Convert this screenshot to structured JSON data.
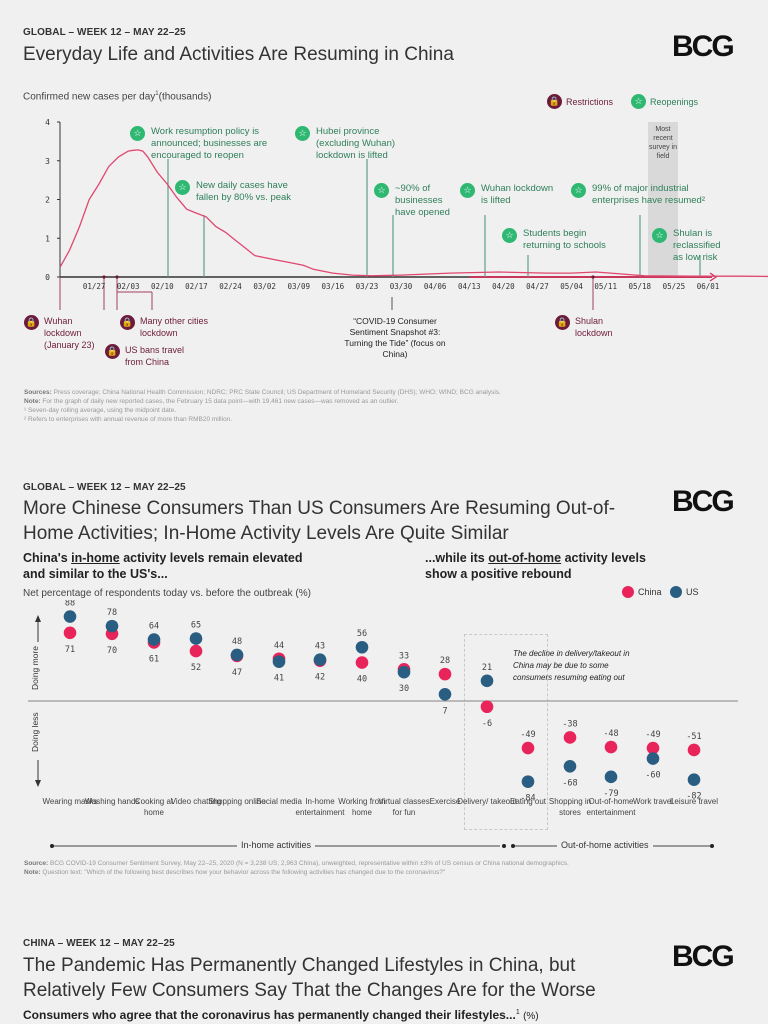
{
  "slide1": {
    "kicker": "GLOBAL – WEEK 12 – MAY 22–25",
    "title": "Everyday Life and Activities Are Resuming in China",
    "logo": "BCG",
    "subtitle": "Confirmed new cases per day",
    "subtitle_sup": "1",
    "subtitle_unit": "(thousands)",
    "legend": {
      "restrictions": "Restrictions",
      "reopenings": "Reopenings",
      "restriction_icon": "lock-icon",
      "reopening_icon": "star-icon"
    },
    "survey_box": "Most recent survey in field",
    "reopenings": [
      {
        "text": "Work resumption policy is announced; businesses are encouraged to reopen"
      },
      {
        "text": "New daily cases have fallen by 80% vs. peak"
      },
      {
        "text": "Hubei province (excluding Wuhan) lockdown is lifted"
      },
      {
        "text": "~90% of businesses have opened"
      },
      {
        "text": "Wuhan lockdown is lifted"
      },
      {
        "text": "Students begin returning to schools"
      },
      {
        "text": "99% of major industrial enterprises have resumed²"
      },
      {
        "text": "Shulan is reclassified as low risk"
      }
    ],
    "restrictions": [
      {
        "text": "Wuhan lockdown (January 23)"
      },
      {
        "text": "Many other cities lockdown"
      },
      {
        "text": "US bans travel from China"
      },
      {
        "text": "Shulan lockdown"
      }
    ],
    "snapshot_label": "“COVID-19 Consumer Sentiment Snapshot #3: Turning the Tide” (focus on China)",
    "notes": {
      "sources_label": "Sources:",
      "sources": "Press coverage; China National Health Commission; NDRC; PRC State Council; US Department of Homeland Security (DHS); WHO; WIND; BCG analysis.",
      "note_label": "Note:",
      "note": "For the graph of daily new reported cases, the February 15 data point—with 19,461 new cases—was removed as an outlier.",
      "fn1": "¹ Seven-day rolling average, using the midpoint date.",
      "fn2": "² Refers to enterprises with annual revenue of more than RMB20 million."
    }
  },
  "slide2": {
    "kicker": "GLOBAL – WEEK 12 – MAY 22–25",
    "title_line1": "More Chinese Consumers Than US Consumers Are Resuming Out-of-",
    "title_line2": "Home Activities; In-Home Activity Levels Are Quite Similar",
    "logo": "BCG",
    "left_sub_a": "China's ",
    "left_sub_u": "in-home",
    "left_sub_b": " activity levels remain elevated",
    "left_sub_c": "and similar to the US's...",
    "right_sub_a": "...while its ",
    "right_sub_u": "out-of-home",
    "right_sub_b": " activity levels",
    "right_sub_c": "show a positive rebound",
    "measure": "Net percentage of respondents today vs. before the outbreak (%)",
    "legend_china": "China",
    "legend_us": "US",
    "doing_more": "Doing more",
    "doing_less": "Doing less",
    "annotation": "The decline in delivery/takeout in China may be due to some consumers resuming eating out",
    "group_in": "In-home activities",
    "group_out": "Out-of-home activities",
    "source_label": "Source:",
    "source": "BCG COVID-19 Consumer Sentiment Survey, May 22–25, 2020 (N = 3,238 US; 2,963 China), unweighted, representative within ±3% of US census or China national demographics.",
    "note_label": "Note:",
    "note": "Question text: \"Which of the following best describes how your behavior across the following activities has changed due to the coronavirus?\""
  },
  "slide3": {
    "kicker": "CHINA – WEEK 12 – MAY 22–25",
    "title_line1": "The Pandemic Has Permanently Changed Lifestyles in China, but",
    "title_line2": "Relatively Few Consumers Say That the Changes Are for the Worse",
    "logo": "BCG",
    "subtitle": "Consumers who agree that the coronavirus has permanently changed their lifestyles...",
    "subtitle_sup": "1",
    "subtitle_unit": "(%)"
  },
  "colors": {
    "china": "#e8245a",
    "us": "#2a5d82",
    "green": "#2eb872",
    "maroon": "#6d1b3a",
    "line": "#e0476f"
  },
  "chart_data": [
    {
      "type": "line",
      "title": "Confirmed new cases per day (thousands)",
      "xlabel": "",
      "ylabel": "thousands",
      "ylim": [
        0,
        4
      ],
      "yticks": [
        "0",
        "1",
        "2",
        "3",
        "4"
      ],
      "xticks": [
        "01/27",
        "02/03",
        "02/10",
        "02/17",
        "02/24",
        "03/02",
        "03/09",
        "03/16",
        "03/23",
        "03/30",
        "04/06",
        "04/13",
        "04/20",
        "04/27",
        "05/04",
        "05/11",
        "05/18",
        "05/25",
        "06/01"
      ],
      "x_start": "01/20",
      "grid": false,
      "series": [
        {
          "name": "Seven-day rolling average",
          "x_days": [
            0,
            2,
            4,
            6,
            8,
            10,
            12,
            14,
            15,
            16,
            17,
            18,
            20,
            22,
            24,
            26,
            28,
            30,
            32,
            34,
            36,
            38,
            40,
            42,
            44,
            46,
            48,
            50,
            52,
            56,
            60,
            64,
            70,
            80,
            90,
            100,
            105,
            110,
            115,
            120,
            130,
            140,
            150,
            160,
            170,
            180,
            190
          ],
          "values": [
            0.25,
            0.7,
            1.3,
            2.0,
            2.4,
            2.85,
            3.1,
            3.25,
            3.27,
            3.28,
            3.25,
            3.1,
            2.7,
            2.4,
            2.05,
            1.75,
            1.65,
            1.55,
            1.3,
            1.15,
            0.95,
            0.75,
            0.55,
            0.5,
            0.45,
            0.4,
            0.35,
            0.3,
            0.2,
            0.1,
            0.05,
            0.03,
            0.05,
            0.1,
            0.13,
            0.1,
            0.1,
            0.13,
            0.08,
            0.03,
            0.02,
            0.02,
            0.01,
            0.01,
            0.01,
            0.01,
            0.01
          ]
        }
      ],
      "events": [
        {
          "date": "01/23",
          "type": "restriction",
          "label": "Wuhan lockdown (January 23)"
        },
        {
          "date": "02/02",
          "type": "restriction",
          "label": "US bans travel from China"
        },
        {
          "date": "02/04",
          "type": "restriction",
          "label": "Many other cities lockdown"
        },
        {
          "date": "02/17",
          "type": "reopening",
          "label": "Work resumption policy is announced; businesses are encouraged to reopen"
        },
        {
          "date": "02/24",
          "type": "reopening",
          "label": "New daily cases have fallen by 80% vs. peak"
        },
        {
          "date": "03/25",
          "type": "reopening",
          "label": "Hubei province (excluding Wuhan) lockdown is lifted"
        },
        {
          "date": "03/30",
          "type": "snapshot",
          "label": "COVID-19 Consumer Sentiment Snapshot #3"
        },
        {
          "date": "04/08",
          "type": "reopening",
          "label": "~90% of businesses have opened"
        },
        {
          "date": "04/08",
          "type": "reopening",
          "label": "Wuhan lockdown is lifted"
        },
        {
          "date": "04/27",
          "type": "reopening",
          "label": "Students begin returning to schools"
        },
        {
          "date": "05/10",
          "type": "restriction",
          "label": "Shulan lockdown"
        },
        {
          "date": "05/20",
          "type": "reopening",
          "label": "99% of major industrial enterprises have resumed"
        },
        {
          "date": "05/31",
          "type": "reopening",
          "label": "Shulan is reclassified as low risk"
        }
      ],
      "highlight_range": [
        "05/22",
        "05/25"
      ]
    },
    {
      "type": "scatter",
      "title": "Net percentage of respondents today vs. before the outbreak (%)",
      "legend": "top-right",
      "categories": [
        "Wearing masks",
        "Washing hands",
        "Cooking at home",
        "Video chatting",
        "Shopping online",
        "Social media",
        "In-home entertainment",
        "Working from home",
        "Virtual classes for fun",
        "Exercise",
        "Delivery/ takeout",
        "Eating out",
        "Shopping in stores",
        "Out-of-home entertainment",
        "Work travel",
        "Leisure travel"
      ],
      "groups": [
        {
          "name": "In-home activities",
          "from": 0,
          "to": 9
        },
        {
          "name": "Out-of-home activities",
          "from": 10,
          "to": 15
        }
      ],
      "series": [
        {
          "name": "China",
          "values": [
            71,
            70,
            61,
            52,
            47,
            44,
            42,
            40,
            33,
            28,
            -6,
            -49,
            -38,
            -48,
            -49,
            -51
          ]
        },
        {
          "name": "US",
          "values": [
            88,
            78,
            64,
            65,
            48,
            41,
            43,
            56,
            30,
            7,
            21,
            -84,
            -68,
            -79,
            -60,
            -82
          ]
        }
      ],
      "ylim": [
        -100,
        100
      ]
    }
  ]
}
